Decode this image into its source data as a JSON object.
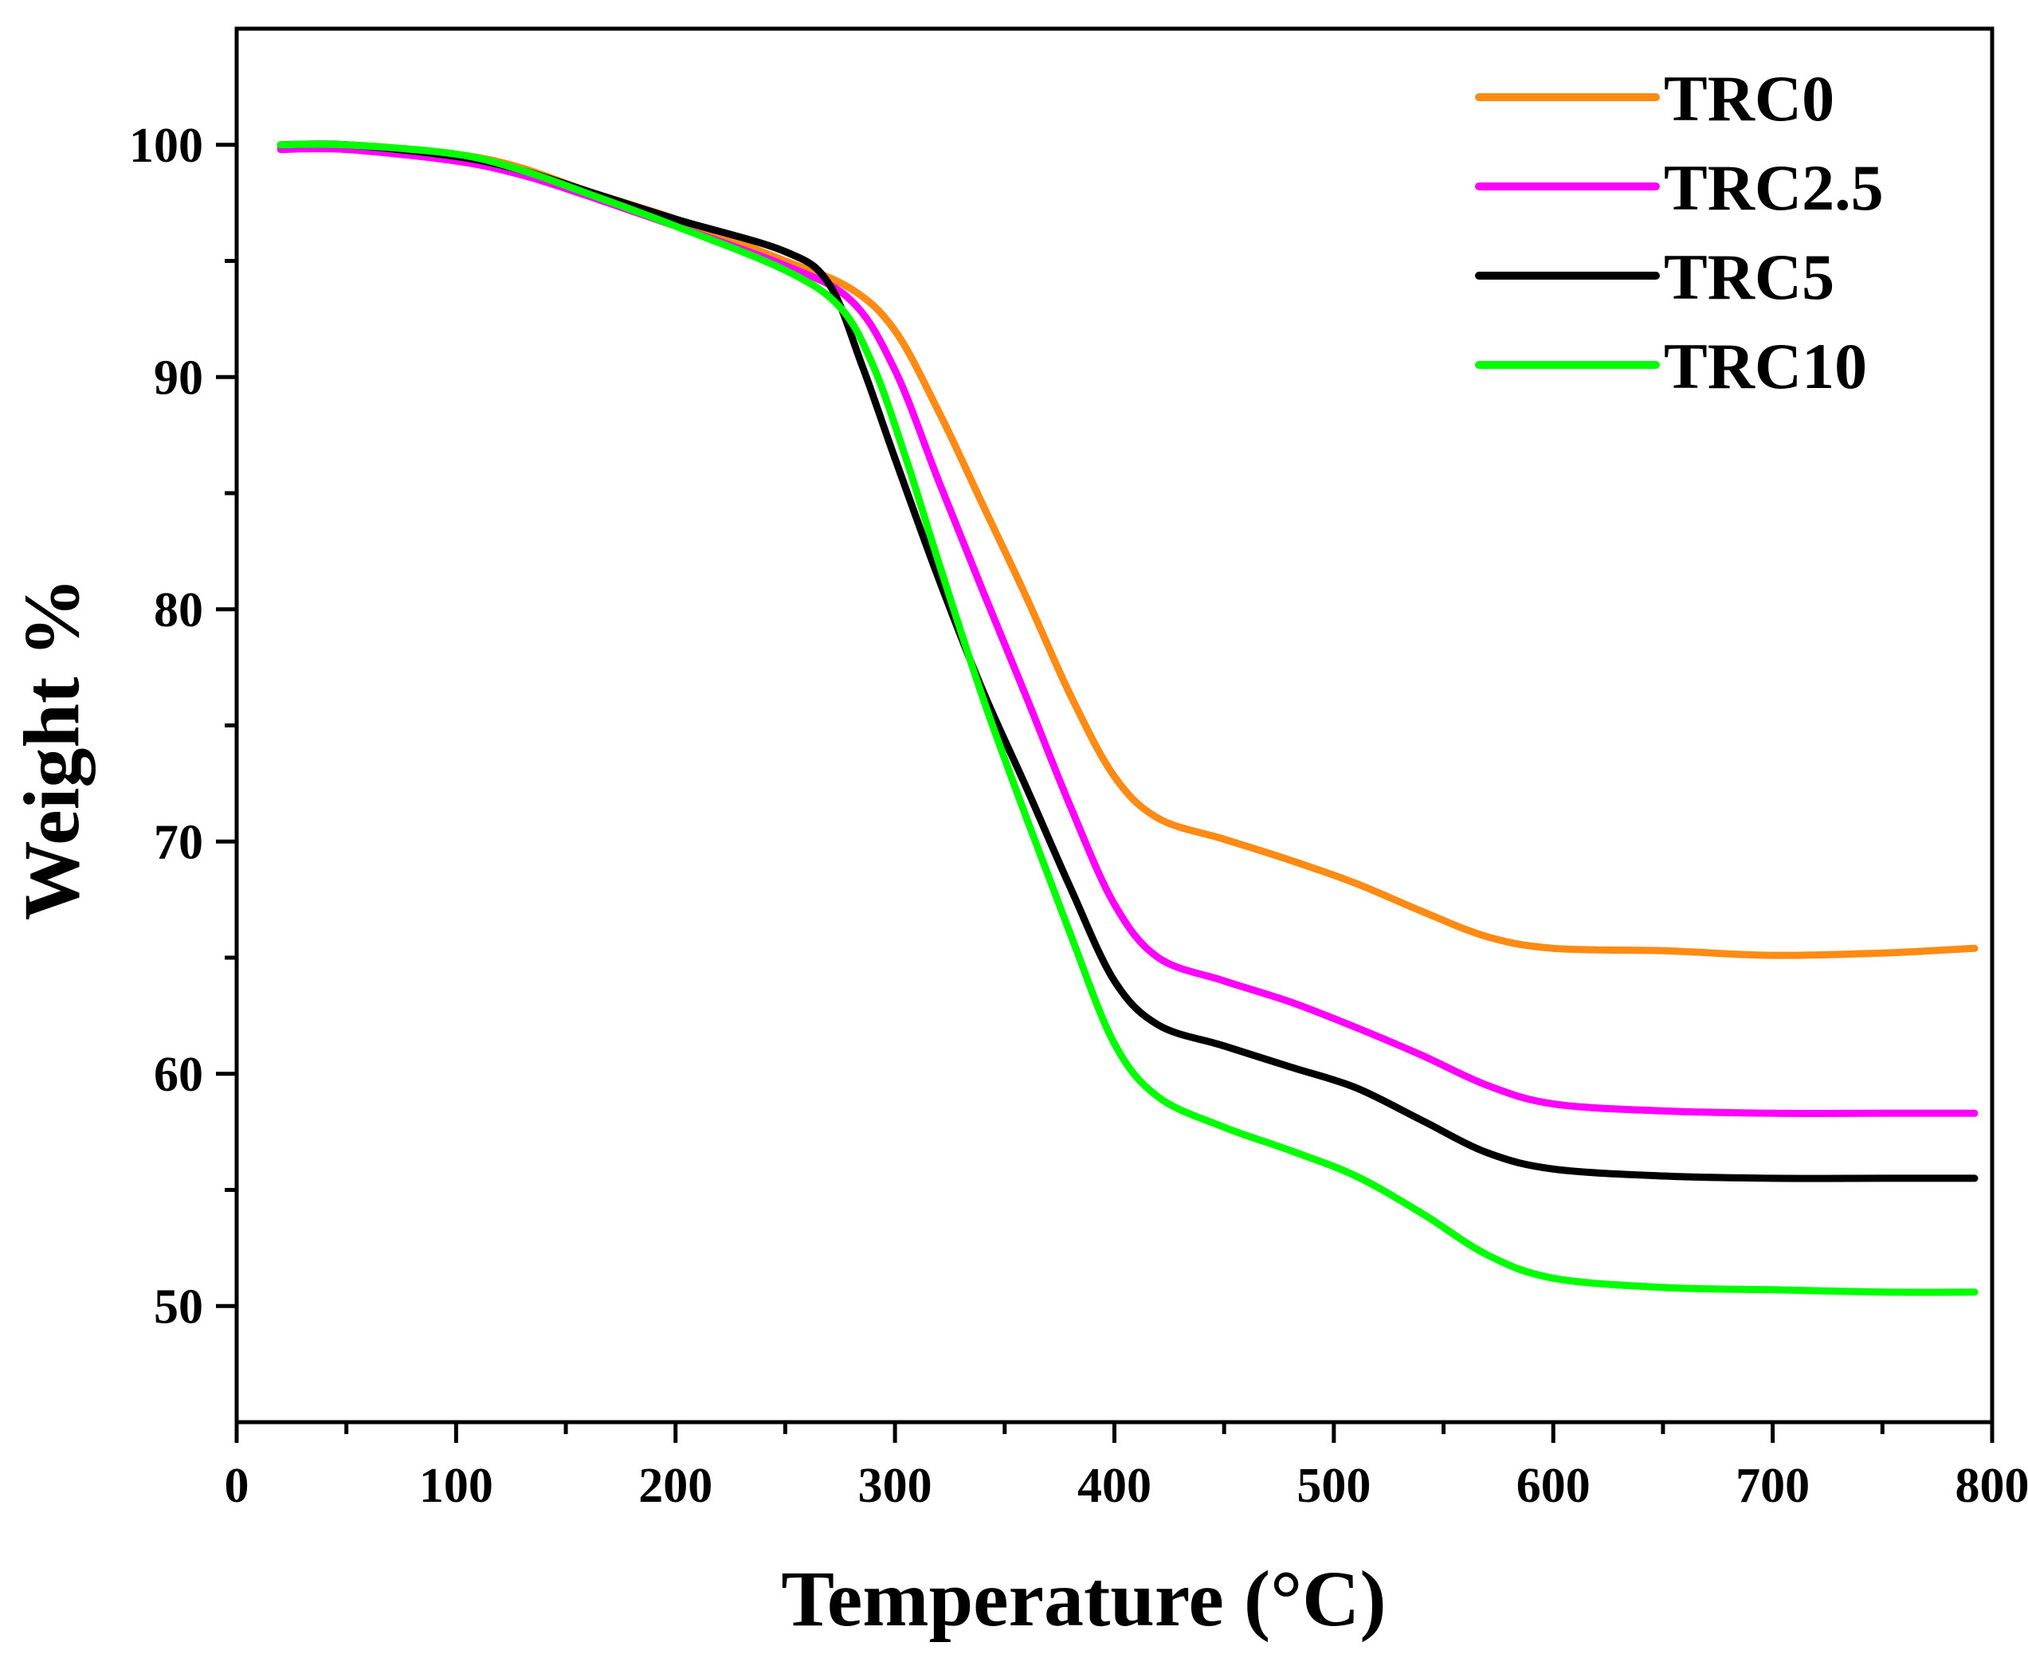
{
  "chart_data": {
    "type": "line",
    "title": "",
    "xlabel": "Temperature (°C)",
    "ylabel": "Weight %",
    "xlim": [
      0,
      800
    ],
    "ylim": [
      45,
      105
    ],
    "x_ticks": [
      0,
      100,
      200,
      300,
      400,
      500,
      600,
      700,
      800
    ],
    "y_ticks": [
      50,
      60,
      70,
      80,
      90,
      100
    ],
    "grid": false,
    "legend_position": "top-right",
    "series": [
      {
        "name": "TRC0",
        "color": "#ff8a14",
        "points": [
          [
            20,
            99.9
          ],
          [
            50,
            100.0
          ],
          [
            100,
            99.6
          ],
          [
            130,
            99.0
          ],
          [
            160,
            98.0
          ],
          [
            200,
            96.8
          ],
          [
            250,
            95.0
          ],
          [
            280,
            93.8
          ],
          [
            300,
            92.0
          ],
          [
            320,
            88.5
          ],
          [
            340,
            84.5
          ],
          [
            360,
            80.5
          ],
          [
            380,
            76.3
          ],
          [
            400,
            72.8
          ],
          [
            420,
            71.0
          ],
          [
            450,
            70.1
          ],
          [
            480,
            69.2
          ],
          [
            510,
            68.2
          ],
          [
            540,
            67.0
          ],
          [
            570,
            65.9
          ],
          [
            600,
            65.4
          ],
          [
            650,
            65.3
          ],
          [
            700,
            65.1
          ],
          [
            750,
            65.2
          ],
          [
            792,
            65.4
          ]
        ]
      },
      {
        "name": "TRC2.5",
        "color": "#ff00ff",
        "points": [
          [
            20,
            99.8
          ],
          [
            50,
            99.8
          ],
          [
            100,
            99.3
          ],
          [
            130,
            98.7
          ],
          [
            160,
            97.8
          ],
          [
            200,
            96.5
          ],
          [
            250,
            94.8
          ],
          [
            280,
            93.3
          ],
          [
            300,
            90.3
          ],
          [
            320,
            85.5
          ],
          [
            340,
            80.8
          ],
          [
            360,
            76.2
          ],
          [
            380,
            71.5
          ],
          [
            400,
            67.3
          ],
          [
            420,
            65.0
          ],
          [
            450,
            64.0
          ],
          [
            480,
            63.1
          ],
          [
            510,
            62.0
          ],
          [
            540,
            60.8
          ],
          [
            570,
            59.5
          ],
          [
            600,
            58.7
          ],
          [
            650,
            58.4
          ],
          [
            700,
            58.3
          ],
          [
            750,
            58.3
          ],
          [
            792,
            58.3
          ]
        ]
      },
      {
        "name": "TRC5",
        "color": "#000000",
        "points": [
          [
            20,
            100.0
          ],
          [
            50,
            100.0
          ],
          [
            100,
            99.5
          ],
          [
            130,
            98.9
          ],
          [
            160,
            98.0
          ],
          [
            200,
            96.8
          ],
          [
            250,
            95.4
          ],
          [
            270,
            94.0
          ],
          [
            285,
            90.5
          ],
          [
            300,
            86.5
          ],
          [
            320,
            81.3
          ],
          [
            340,
            76.5
          ],
          [
            360,
            72.3
          ],
          [
            380,
            68.0
          ],
          [
            400,
            64.0
          ],
          [
            420,
            62.1
          ],
          [
            450,
            61.2
          ],
          [
            480,
            60.3
          ],
          [
            510,
            59.4
          ],
          [
            540,
            58.0
          ],
          [
            570,
            56.6
          ],
          [
            600,
            55.9
          ],
          [
            650,
            55.6
          ],
          [
            700,
            55.5
          ],
          [
            750,
            55.5
          ],
          [
            792,
            55.5
          ]
        ]
      },
      {
        "name": "TRC10",
        "color": "#00ff00",
        "points": [
          [
            20,
            100.0
          ],
          [
            50,
            100.0
          ],
          [
            100,
            99.6
          ],
          [
            130,
            98.9
          ],
          [
            160,
            97.9
          ],
          [
            200,
            96.5
          ],
          [
            250,
            94.6
          ],
          [
            275,
            93.0
          ],
          [
            290,
            90.5
          ],
          [
            305,
            86.5
          ],
          [
            320,
            82.0
          ],
          [
            340,
            76.2
          ],
          [
            360,
            71.0
          ],
          [
            380,
            66.0
          ],
          [
            400,
            61.3
          ],
          [
            420,
            59.0
          ],
          [
            450,
            57.7
          ],
          [
            480,
            56.7
          ],
          [
            510,
            55.6
          ],
          [
            540,
            54.0
          ],
          [
            570,
            52.2
          ],
          [
            600,
            51.2
          ],
          [
            650,
            50.8
          ],
          [
            700,
            50.7
          ],
          [
            750,
            50.6
          ],
          [
            792,
            50.6
          ]
        ]
      }
    ]
  }
}
